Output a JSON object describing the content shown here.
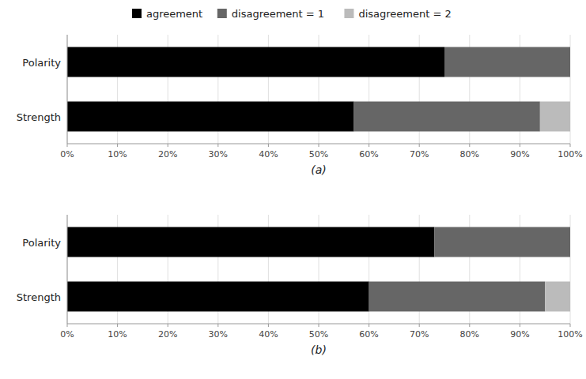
{
  "chart_data": [
    {
      "type": "bar",
      "orientation": "horizontal",
      "stacked": true,
      "grid": true,
      "legend": "top",
      "x_label": "(a)",
      "categories": [
        "Polarity",
        "Strength"
      ],
      "series": [
        {
          "name": "agreement",
          "color": "#000000",
          "values": [
            75,
            57
          ]
        },
        {
          "name": "disagreement = 1",
          "color": "#666666",
          "values": [
            25,
            37
          ]
        },
        {
          "name": "disagreement = 2",
          "color": "#bbbbbb",
          "values": [
            0,
            6
          ]
        }
      ],
      "xlim": [
        0,
        100
      ],
      "xticks": [
        {
          "value": 0,
          "label": "0%"
        },
        {
          "value": 10,
          "label": "10%"
        },
        {
          "value": 20,
          "label": "20%"
        },
        {
          "value": 30,
          "label": "30%"
        },
        {
          "value": 40,
          "label": "40%"
        },
        {
          "value": 50,
          "label": "50%"
        },
        {
          "value": 60,
          "label": "60%"
        },
        {
          "value": 70,
          "label": "70%"
        },
        {
          "value": 80,
          "label": "80%"
        },
        {
          "value": 90,
          "label": "90%"
        },
        {
          "value": 100,
          "label": "100%"
        }
      ]
    },
    {
      "type": "bar",
      "orientation": "horizontal",
      "stacked": true,
      "grid": true,
      "x_label": "(b)",
      "categories": [
        "Polarity",
        "Strength"
      ],
      "series": [
        {
          "color": "#000000",
          "values": [
            73,
            60
          ]
        },
        {
          "color": "#666666",
          "values": [
            27,
            35
          ]
        },
        {
          "color": "#bbbbbb",
          "values": [
            0,
            5
          ]
        }
      ],
      "xlim": [
        0,
        100
      ],
      "xticks": [
        {
          "value": 0,
          "label": "0%"
        },
        {
          "value": 10,
          "label": "10%"
        },
        {
          "value": 20,
          "label": "20%"
        },
        {
          "value": 30,
          "label": "30%"
        },
        {
          "value": 40,
          "label": "40%"
        },
        {
          "value": 50,
          "label": "50%"
        },
        {
          "value": 60,
          "label": "60%"
        },
        {
          "value": 70,
          "label": "70%"
        },
        {
          "value": 80,
          "label": "80%"
        },
        {
          "value": 90,
          "label": "90%"
        },
        {
          "value": 100,
          "label": "100%"
        }
      ]
    }
  ]
}
